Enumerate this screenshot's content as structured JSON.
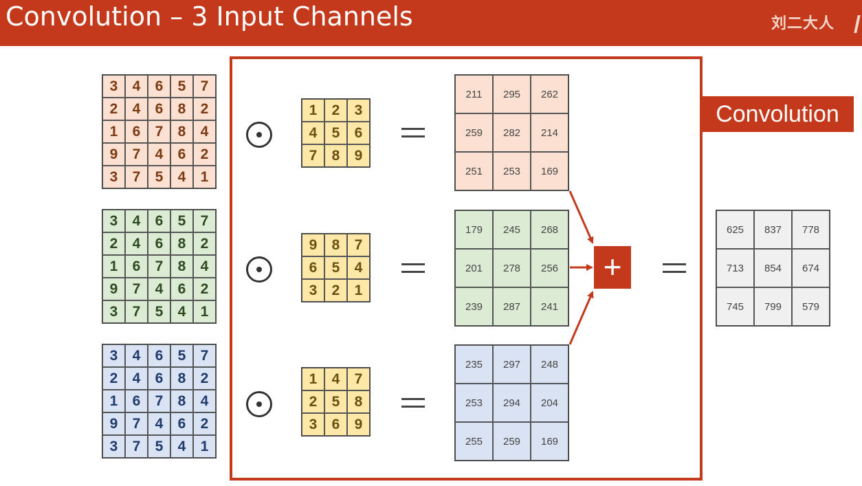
{
  "header": {
    "title": "Convolution – 3 Input Channels",
    "author": "刘二大人"
  },
  "callout": "Convolution",
  "inputs": [
    {
      "color": "orange",
      "rows": [
        [
          3,
          4,
          6,
          5,
          7
        ],
        [
          2,
          4,
          6,
          8,
          2
        ],
        [
          1,
          6,
          7,
          8,
          4
        ],
        [
          9,
          7,
          4,
          6,
          2
        ],
        [
          3,
          7,
          5,
          4,
          1
        ]
      ]
    },
    {
      "color": "green",
      "rows": [
        [
          3,
          4,
          6,
          5,
          7
        ],
        [
          2,
          4,
          6,
          8,
          2
        ],
        [
          1,
          6,
          7,
          8,
          4
        ],
        [
          9,
          7,
          4,
          6,
          2
        ],
        [
          3,
          7,
          5,
          4,
          1
        ]
      ]
    },
    {
      "color": "blue",
      "rows": [
        [
          3,
          4,
          6,
          5,
          7
        ],
        [
          2,
          4,
          6,
          8,
          2
        ],
        [
          1,
          6,
          7,
          8,
          4
        ],
        [
          9,
          7,
          4,
          6,
          2
        ],
        [
          3,
          7,
          5,
          4,
          1
        ]
      ]
    }
  ],
  "kernels": [
    [
      [
        1,
        2,
        3
      ],
      [
        4,
        5,
        6
      ],
      [
        7,
        8,
        9
      ]
    ],
    [
      [
        9,
        8,
        7
      ],
      [
        6,
        5,
        4
      ],
      [
        3,
        2,
        1
      ]
    ],
    [
      [
        1,
        4,
        7
      ],
      [
        2,
        5,
        8
      ],
      [
        3,
        6,
        9
      ]
    ]
  ],
  "outputs": [
    [
      [
        211,
        295,
        262
      ],
      [
        259,
        282,
        214
      ],
      [
        251,
        253,
        169
      ]
    ],
    [
      [
        179,
        245,
        268
      ],
      [
        201,
        278,
        256
      ],
      [
        239,
        287,
        241
      ]
    ],
    [
      [
        235,
        297,
        248
      ],
      [
        253,
        294,
        204
      ],
      [
        255,
        259,
        169
      ]
    ]
  ],
  "result": [
    [
      625,
      837,
      778
    ],
    [
      713,
      854,
      674
    ],
    [
      745,
      799,
      579
    ]
  ],
  "operators": {
    "plus": "+"
  },
  "colors": {
    "accent": "#c4391c",
    "orange": "#fce0d2",
    "green": "#dcebd4",
    "blue": "#dae3f3",
    "kernel": "#fde8a8",
    "result": "#f0f0f0"
  }
}
